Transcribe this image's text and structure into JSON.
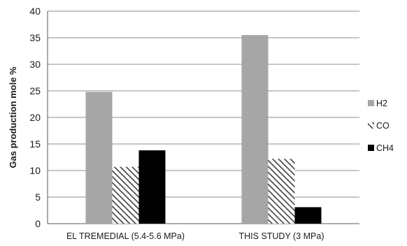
{
  "chart_data": {
    "type": "bar",
    "title": "",
    "xlabel": "",
    "ylabel": "Gas production mole %",
    "ylim": [
      0,
      40
    ],
    "yticks": [
      0,
      5,
      10,
      15,
      20,
      25,
      30,
      35,
      40
    ],
    "grid": true,
    "legend_position": "right",
    "categories": [
      "EL TREMEDIAL (5.4-5.6 MPa)",
      "THIS STUDY (3 MPa)"
    ],
    "series": [
      {
        "name": "H2",
        "values": [
          24.8,
          35.5
        ],
        "color": "#a6a6a6",
        "pattern": "solid"
      },
      {
        "name": "CO",
        "values": [
          10.7,
          12.2
        ],
        "color": "#404040",
        "pattern": "diagonal-hatch"
      },
      {
        "name": "CH4",
        "values": [
          13.8,
          3.1
        ],
        "color": "#000000",
        "pattern": "solid"
      }
    ]
  }
}
